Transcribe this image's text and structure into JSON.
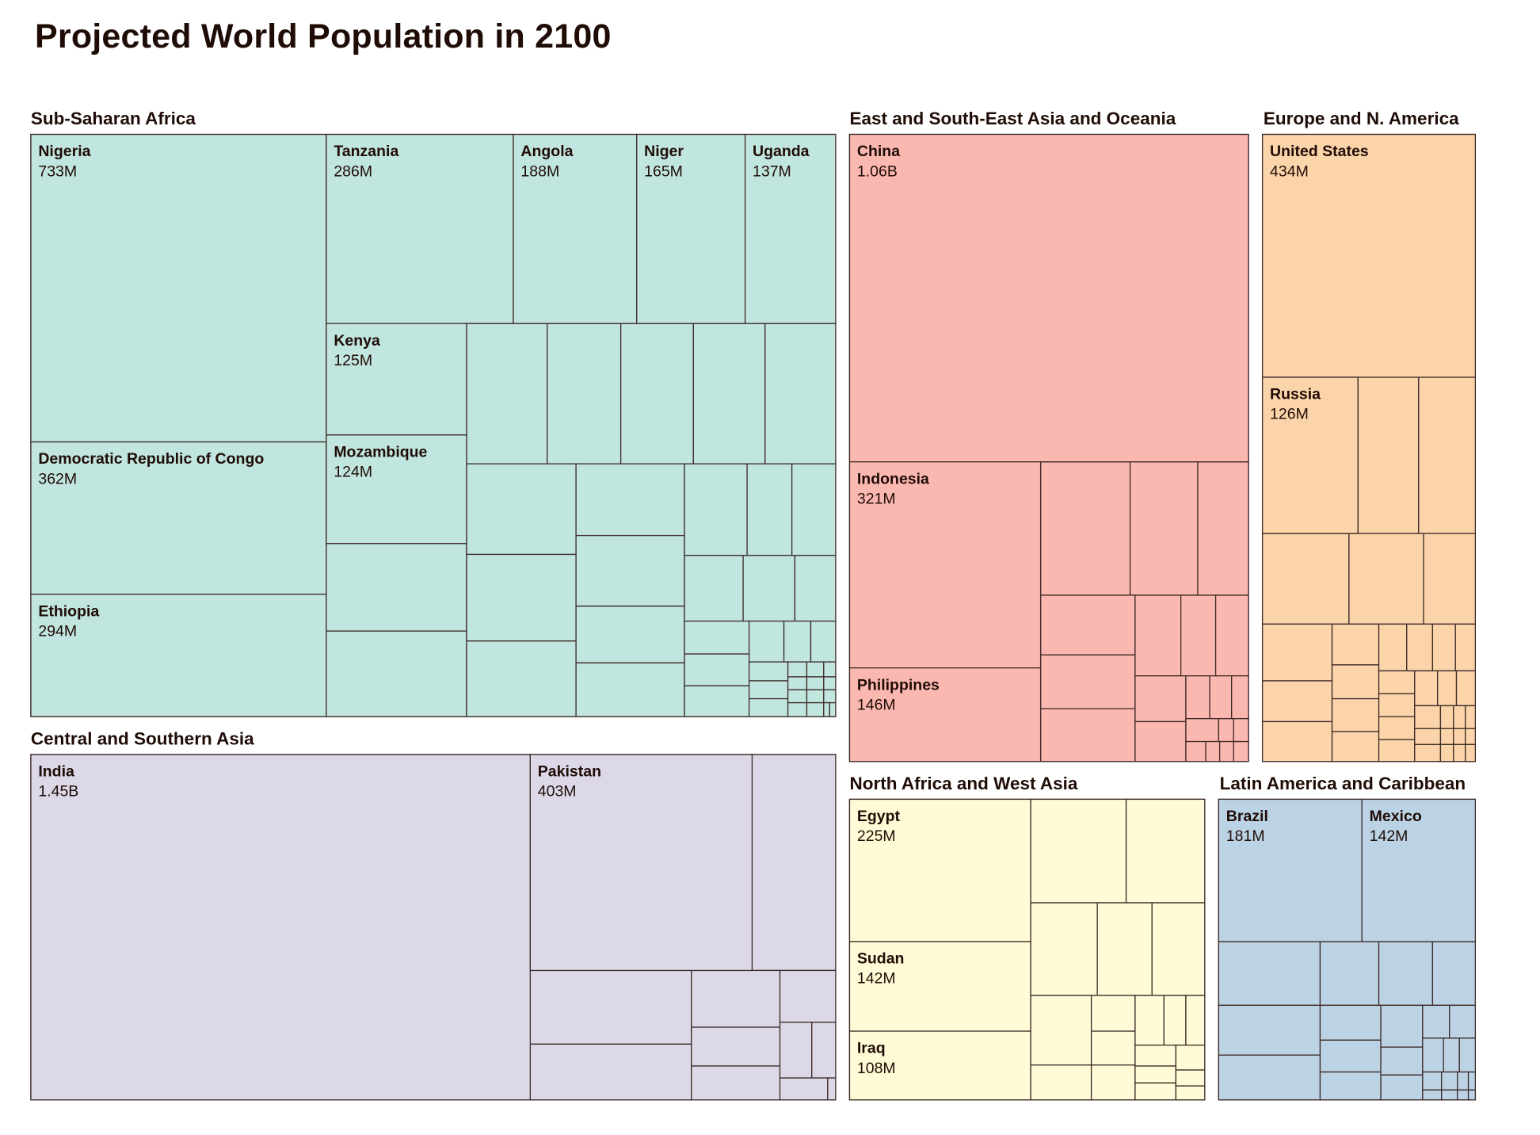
{
  "chart_data": {
    "type": "treemap",
    "title": "Projected World Population in 2100",
    "groups": [
      {
        "name": "Sub-Saharan Africa",
        "color": "#c1e5df",
        "items": [
          {
            "name": "Nigeria",
            "value": "733M"
          },
          {
            "name": "Democratic Republic of Congo",
            "value": "362M"
          },
          {
            "name": "Ethiopia",
            "value": "294M"
          },
          {
            "name": "Tanzania",
            "value": "286M"
          },
          {
            "name": "Angola",
            "value": "188M"
          },
          {
            "name": "Niger",
            "value": "165M"
          },
          {
            "name": "Uganda",
            "value": "137M"
          },
          {
            "name": "Kenya",
            "value": "125M"
          },
          {
            "name": "Mozambique",
            "value": "124M"
          }
        ]
      },
      {
        "name": "Central and Southern Asia",
        "color": "#dcd8e8",
        "items": [
          {
            "name": "India",
            "value": "1.45B"
          },
          {
            "name": "Pakistan",
            "value": "403M"
          }
        ]
      },
      {
        "name": "East and South-East Asia and Oceania",
        "color": "#fbb8b0",
        "items": [
          {
            "name": "China",
            "value": "1.06B"
          },
          {
            "name": "Indonesia",
            "value": "321M"
          },
          {
            "name": "Philippines",
            "value": "146M"
          }
        ]
      },
      {
        "name": "Europe and N. America",
        "color": "#fbd4aa",
        "items": [
          {
            "name": "United States",
            "value": "434M"
          },
          {
            "name": "Russia",
            "value": "126M"
          }
        ]
      },
      {
        "name": "North Africa and West Asia",
        "color": "#fffbd6",
        "items": [
          {
            "name": "Egypt",
            "value": "225M"
          },
          {
            "name": "Sudan",
            "value": "142M"
          },
          {
            "name": "Iraq",
            "value": "108M"
          }
        ]
      },
      {
        "name": "Latin America and Caribbean",
        "color": "#bcd3e6",
        "items": [
          {
            "name": "Brazil",
            "value": "181M"
          },
          {
            "name": "Mexico",
            "value": "142M"
          }
        ]
      }
    ]
  }
}
